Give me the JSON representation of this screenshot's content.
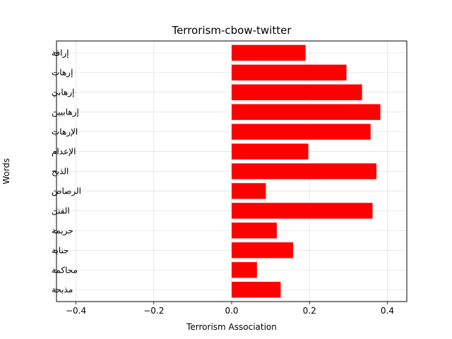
{
  "chart_data": {
    "type": "bar",
    "orientation": "horizontal",
    "title": "Terrorism-cbow-twitter",
    "xlabel": "Terrorism Association",
    "ylabel": "Words",
    "xlim": [
      -0.45,
      0.45
    ],
    "xticks": [
      -0.4,
      -0.2,
      0.0,
      0.2,
      0.4
    ],
    "xtick_labels": [
      "−0.4",
      "−0.2",
      "0.0",
      "0.2",
      "0.4"
    ],
    "grid": true,
    "bar_color": "#ff0000",
    "categories": [
      "إراقة",
      "إرهاب",
      "إرهابي",
      "إرهابيين",
      "الإرهاب",
      "الإعدام",
      "الذبح",
      "الرصاص",
      "القتل",
      "جريمة",
      "جناية",
      "محاكمة",
      "مذبحة"
    ],
    "values": [
      0.19,
      0.295,
      0.335,
      0.382,
      0.357,
      0.197,
      0.372,
      0.088,
      0.362,
      0.116,
      0.158,
      0.065,
      0.126
    ]
  }
}
